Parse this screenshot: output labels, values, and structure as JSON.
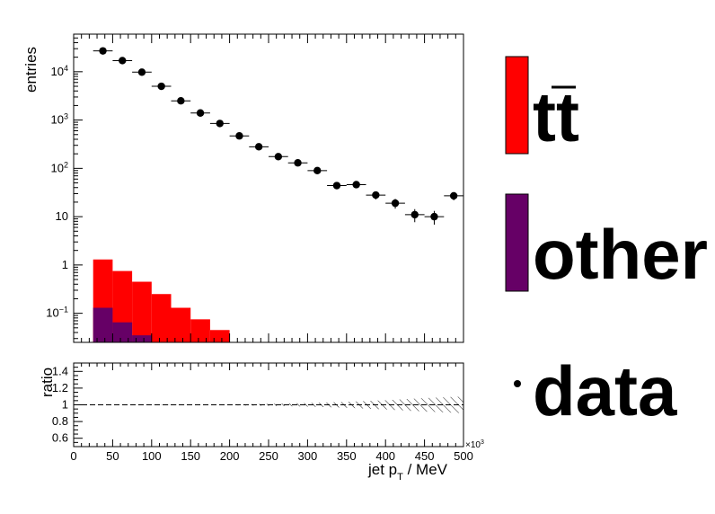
{
  "chart_data": [
    {
      "type": "histogram",
      "panel": "main",
      "ylabel": "entries",
      "yscale": "log",
      "ylim": [
        0.025,
        60000
      ],
      "xlim": [
        0,
        500000
      ],
      "ytick_labels": {
        "0.1": {
          "base": "10",
          "exp": "−1"
        },
        "1": {
          "base": "1",
          "exp": ""
        },
        "10": {
          "base": "10",
          "exp": ""
        },
        "100": {
          "base": "10",
          "exp": "2"
        },
        "1000": {
          "base": "10",
          "exp": "3"
        },
        "10000": {
          "base": "10",
          "exp": "4"
        }
      },
      "bin_edges": [
        25000,
        50000,
        75000,
        100000,
        125000,
        150000,
        175000,
        200000
      ],
      "series": [
        {
          "name": "tt̄",
          "color": "#ff0000",
          "stack": "total",
          "values": [
            1.3,
            0.75,
            0.45,
            0.25,
            0.13,
            0.075,
            0.045
          ]
        },
        {
          "name": "other",
          "color": "#660066",
          "stack": "component",
          "values": [
            0.13,
            0.065,
            0.035,
            0.025,
            0.02,
            0.02,
            0.02
          ]
        },
        {
          "name": "data",
          "color": "#000000",
          "x": [
            37500,
            62500,
            87500,
            112500,
            137500,
            162500,
            187500,
            212500,
            237500,
            262500,
            287500,
            312500,
            337500,
            362500,
            387500,
            412500,
            437500,
            462500,
            487500
          ],
          "xerr": 12500,
          "y": [
            27000,
            17000,
            9800,
            5000,
            2500,
            1400,
            850,
            470,
            280,
            175,
            130,
            90,
            44,
            46,
            28,
            19,
            11,
            10,
            27
          ]
        }
      ]
    },
    {
      "type": "band",
      "panel": "ratio",
      "ylabel": "ratio",
      "xlabel": "jet p_T / MeV",
      "xlabel_main": "jet p",
      "xlabel_sub": "T",
      "xlabel_rest": " / MeV",
      "x_multiplier": "×10³",
      "x_multiplier_base": "×10",
      "x_multiplier_exp": "3",
      "ylim": [
        0.5,
        1.5
      ],
      "xlim": [
        0,
        500000
      ],
      "xticks": [
        0,
        50000,
        100000,
        150000,
        200000,
        250000,
        300000,
        350000,
        400000,
        450000,
        500000
      ],
      "xtick_labels": [
        "0",
        "50",
        "100",
        "150",
        "200",
        "250",
        "300",
        "350",
        "400",
        "450",
        "500"
      ],
      "yticks": [
        0.6,
        0.8,
        1.0,
        1.2,
        1.4
      ],
      "ytick_labels": [
        "0.6",
        "0.8",
        "1",
        "1.2",
        "1.4"
      ],
      "line_y": 1.0,
      "uncertainty_x": [
        0,
        100000,
        200000,
        250000,
        300000,
        350000,
        400000,
        450000,
        500000
      ],
      "uncertainty_half_width": [
        0.0,
        0.002,
        0.006,
        0.012,
        0.022,
        0.035,
        0.055,
        0.08,
        0.1
      ]
    }
  ],
  "legend": {
    "placement": "right",
    "items": [
      {
        "label": "tt̄",
        "label_base": "tt",
        "swatch": "box",
        "color": "#ff0000"
      },
      {
        "label": "other",
        "swatch": "box",
        "color": "#660066"
      },
      {
        "label": "data",
        "swatch": "marker",
        "color": "#000000"
      }
    ]
  }
}
